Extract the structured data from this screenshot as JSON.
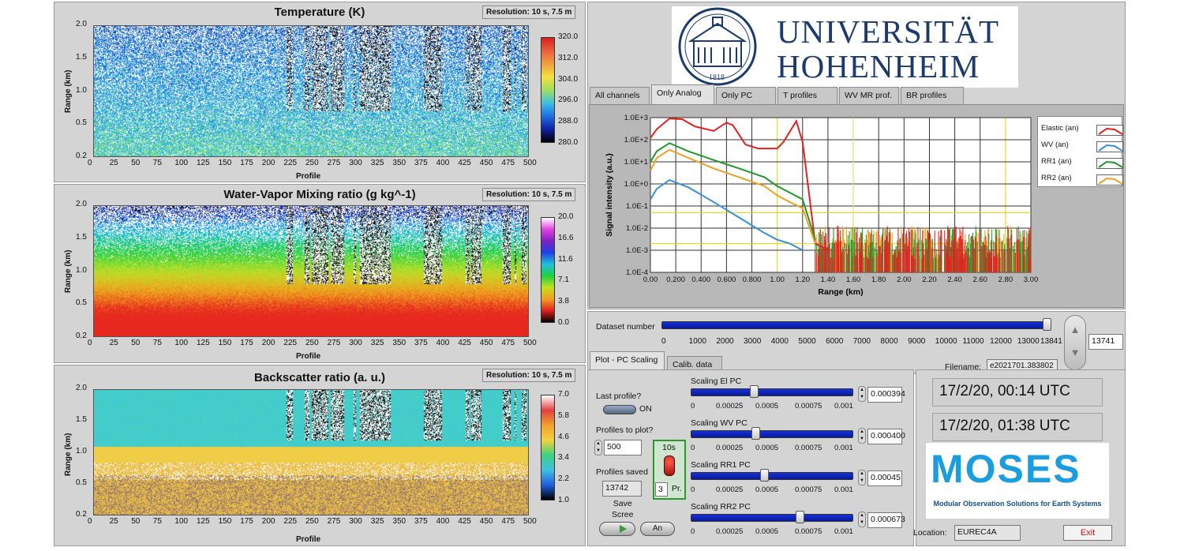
{
  "colors": {
    "panel": "#d4d4d4",
    "slider_fill": "#1530d8",
    "accent_red": "#e52020"
  },
  "temperature": {
    "title": "Temperature (K)",
    "resolution": "Resolution: 10 s, 7.5 m",
    "ylabel": "Range (km)",
    "xlabel": "Profile",
    "yticks": [
      "2.0",
      "1.5",
      "1.0",
      "0.5",
      "0.2"
    ],
    "xticks": [
      "0",
      "25",
      "50",
      "75",
      "100",
      "125",
      "150",
      "175",
      "200",
      "225",
      "250",
      "275",
      "300",
      "325",
      "350",
      "375",
      "400",
      "425",
      "450",
      "475",
      "500"
    ],
    "cbar_ticks": [
      "320.0",
      "312.0",
      "304.0",
      "296.0",
      "288.0",
      "280.0"
    ]
  },
  "watervapor": {
    "title": "Water-Vapor Mixing ratio  (g kg^-1)",
    "resolution": "Resolution: 10 s, 7.5 m",
    "ylabel": "Range (km)",
    "xlabel": "Profile",
    "yticks": [
      "2.0",
      "1.5",
      "1.0",
      "0.5",
      "0.2"
    ],
    "xticks": [
      "0",
      "25",
      "50",
      "75",
      "100",
      "125",
      "150",
      "175",
      "200",
      "225",
      "250",
      "275",
      "300",
      "325",
      "350",
      "375",
      "400",
      "425",
      "450",
      "475",
      "500"
    ],
    "cbar_ticks": [
      "20.0",
      "16.6",
      "11.6",
      "7.1",
      "3.8",
      "0.0"
    ]
  },
  "backscatter": {
    "title": "Backscatter ratio  (a. u.)",
    "resolution": "Resolution: 10 s, 7.5 m",
    "ylabel": "Range (km)",
    "xlabel": "Profile",
    "yticks": [
      "2.0",
      "1.5",
      "1.0",
      "0.5",
      "0.2"
    ],
    "xticks": [
      "0",
      "25",
      "50",
      "75",
      "100",
      "125",
      "150",
      "175",
      "200",
      "225",
      "250",
      "275",
      "300",
      "325",
      "350",
      "375",
      "400",
      "425",
      "450",
      "475",
      "500"
    ],
    "cbar_ticks": [
      "7.0",
      "5.8",
      "4.6",
      "3.4",
      "2.2",
      "1.0"
    ]
  },
  "logo": {
    "university_line1": "UNIVERSITÄT",
    "university_line2": "HOHENHEIM",
    "year": "1818"
  },
  "tabs": [
    "All channels",
    "Only Analog",
    "Only PC",
    "T profiles",
    "WV MR prof.",
    "BR profiles"
  ],
  "active_tab": 1,
  "signal_chart": {
    "ylabel": "Signal intensity (a.u.)",
    "xlabel": "Range (km)",
    "yticks": [
      "1.0E+3",
      "1.0E+2",
      "1.0E+1",
      "1.0E+0",
      "1.0E-1",
      "1.0E-2",
      "1.0E-3",
      "1.0E-4"
    ],
    "xticks": [
      "0.00",
      "0.200",
      "0.400",
      "0.600",
      "0.800",
      "1.00",
      "1.20",
      "1.40",
      "1.60",
      "1.80",
      "2.00",
      "2.20",
      "2.40",
      "2.60",
      "2.80",
      "3.00"
    ],
    "legend": [
      {
        "name": "Elastic (an)",
        "color": "#e52020"
      },
      {
        "name": "WV (an)",
        "color": "#3a8fd8"
      },
      {
        "name": "RR1 (an)",
        "color": "#1f9a2a"
      },
      {
        "name": "RR2 (an)",
        "color": "#f0a020"
      }
    ]
  },
  "chart_data": {
    "type": "line",
    "xlabel": "Range (km)",
    "ylabel": "Signal intensity (a.u.)",
    "xlim": [
      0,
      3.0
    ],
    "ylim": [
      0.0001,
      1000
    ],
    "yscale": "log",
    "grid": true,
    "legend_position": "right",
    "series": [
      {
        "name": "Elastic (an)",
        "x": [
          0.0,
          0.05,
          0.15,
          0.25,
          0.35,
          0.5,
          0.6,
          0.65,
          0.75,
          0.85,
          1.0,
          1.05,
          1.15,
          1.2,
          1.3,
          1.4
        ],
        "y": [
          120,
          300,
          900,
          850,
          400,
          250,
          600,
          450,
          60,
          40,
          40,
          80,
          700,
          80,
          0.002,
          0.001
        ]
      },
      {
        "name": "WV (an)",
        "x": [
          0.0,
          0.05,
          0.15,
          0.3,
          0.5,
          0.7,
          0.9,
          1.0,
          1.1,
          1.2
        ],
        "y": [
          0.2,
          0.6,
          1.5,
          0.7,
          0.15,
          0.03,
          0.006,
          0.003,
          0.002,
          0.001
        ]
      },
      {
        "name": "RR1 (an)",
        "x": [
          0.0,
          0.05,
          0.15,
          0.3,
          0.5,
          0.7,
          0.9,
          1.0,
          1.1,
          1.2,
          1.3
        ],
        "y": [
          10,
          30,
          70,
          30,
          12,
          5,
          2,
          0.8,
          0.4,
          0.2,
          0.003
        ]
      },
      {
        "name": "RR2 (an)",
        "x": [
          0.0,
          0.05,
          0.15,
          0.3,
          0.5,
          0.7,
          0.9,
          1.0,
          1.1,
          1.2,
          1.3
        ],
        "y": [
          4,
          15,
          35,
          15,
          5,
          2,
          0.8,
          0.3,
          0.15,
          0.08,
          0.002
        ]
      }
    ]
  },
  "dataset": {
    "label": "Dataset number",
    "value": "13741",
    "fraction": 0.99,
    "ticks": [
      "0",
      "1000",
      "2000",
      "3000",
      "4000",
      "5000",
      "6000",
      "7000",
      "8000",
      "9000",
      "10000",
      "11000",
      "12000",
      "13000",
      "13841"
    ],
    "filename_label": "Filename:",
    "filename": "e2021701.383802"
  },
  "subtabs": [
    "Plot - PC Scaling",
    "Calib. data"
  ],
  "controls": {
    "last_profile_label": "Last profile?",
    "toggle_label": "ON",
    "profiles_to_plot_label": "Profiles to plot?",
    "profiles_to_plot": "500",
    "profiles_saved_label": "Profiles saved",
    "profiles_saved": "13742",
    "switch_top_label": "10s",
    "switch_value": "3",
    "switch_unit": "Pr.",
    "save_screen_label": "Save\nScree",
    "save_button_label": "An"
  },
  "scalings": [
    {
      "label": "Scaling El PC",
      "value": "0.000394",
      "fraction": 0.39
    },
    {
      "label": "Scaling WV PC",
      "value": "0.000400",
      "fraction": 0.4
    },
    {
      "label": "Scaling RR1 PC",
      "value": "0.00045",
      "fraction": 0.45
    },
    {
      "label": "Scaling RR2 PC",
      "value": "0.000673",
      "fraction": 0.67
    }
  ],
  "scale_ticks": [
    "0",
    "0.00025",
    "0.0005",
    "0.00075",
    "0.001"
  ],
  "times": [
    "17/2/20, 00:14 UTC",
    "17/2/20, 01:38 UTC"
  ],
  "moses": {
    "name": "MOSES",
    "subtitle": "Modular Observation Solutions for Earth Systems"
  },
  "location_label": "Location:",
  "location": "EUREC4A",
  "exit_label": "Exit"
}
